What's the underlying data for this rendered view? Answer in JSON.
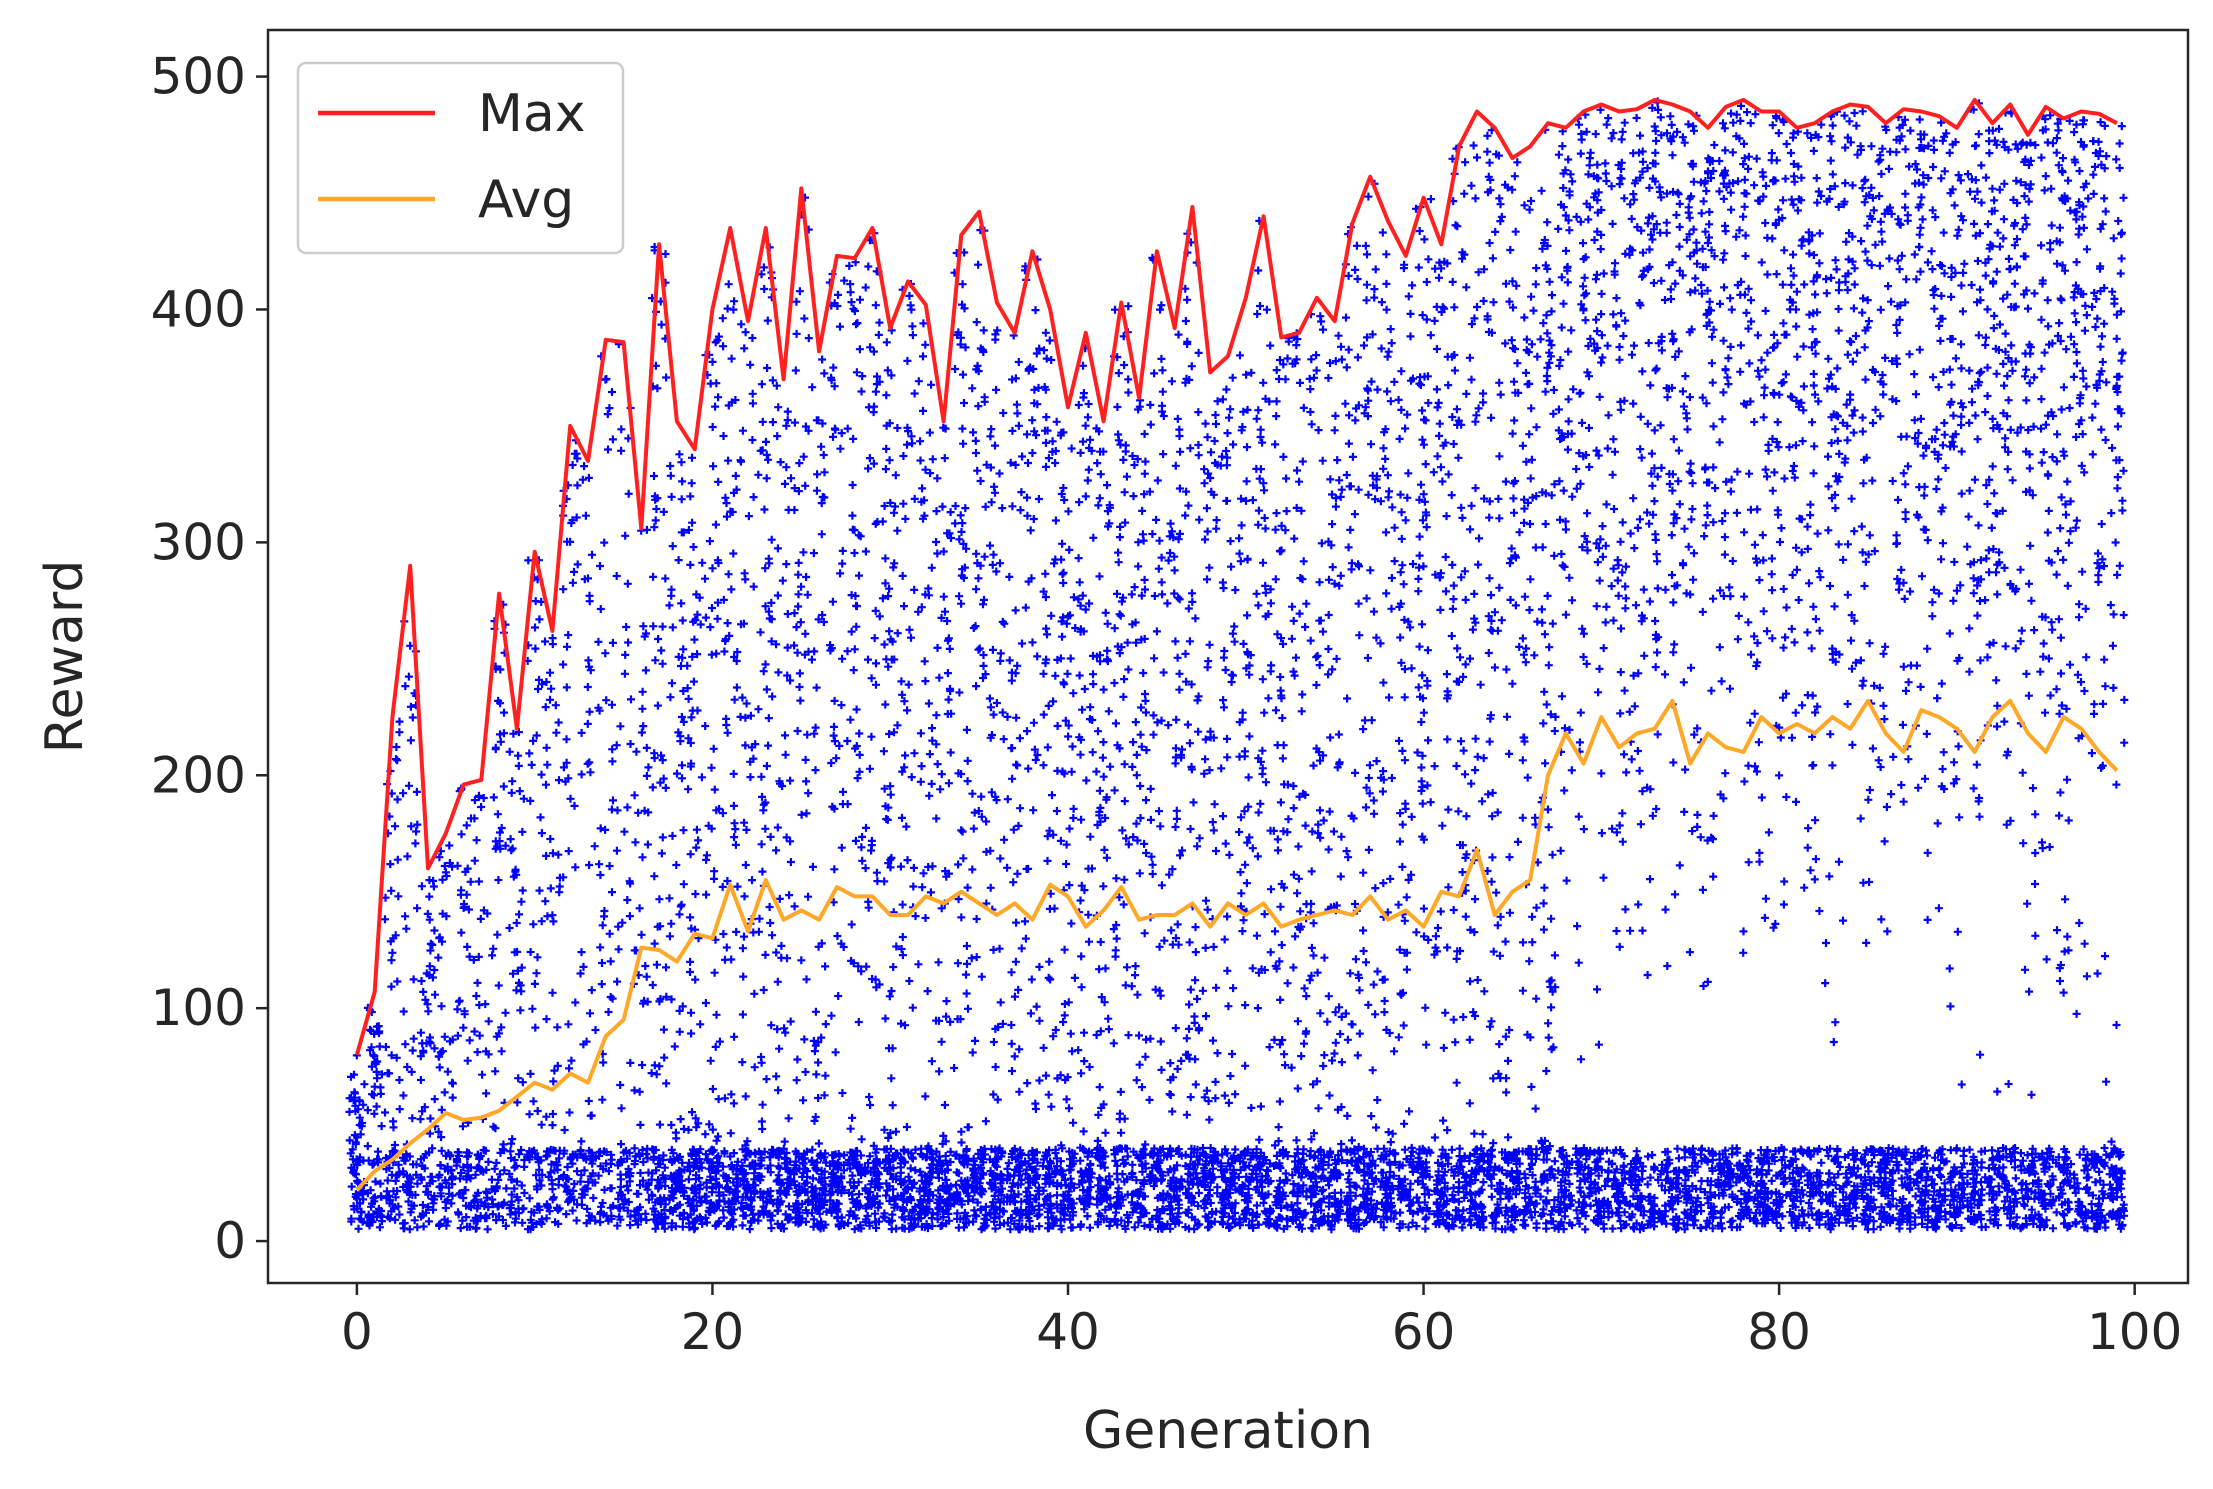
{
  "chart_data": {
    "type": "scatter",
    "title": "",
    "xlabel": "Generation",
    "ylabel": "Reward",
    "xlim": [
      -5,
      103
    ],
    "ylim": [
      -18,
      520
    ],
    "xticks": [
      0,
      20,
      40,
      60,
      80,
      100
    ],
    "yticks": [
      0,
      100,
      200,
      300,
      400,
      500
    ],
    "grid": false,
    "legend": {
      "placement": "top-left",
      "entries": [
        "Max",
        "Avg"
      ]
    },
    "colors": {
      "max": "#ff2020",
      "avg": "#ffa726",
      "scatter": "#0000ff",
      "axes": "#262626"
    },
    "series": [
      {
        "name": "Max",
        "type": "line",
        "x": [
          0,
          1,
          2,
          3,
          4,
          5,
          6,
          7,
          8,
          9,
          10,
          11,
          12,
          13,
          14,
          15,
          16,
          17,
          18,
          19,
          20,
          21,
          22,
          23,
          24,
          25,
          26,
          27,
          28,
          29,
          30,
          31,
          32,
          33,
          34,
          35,
          36,
          37,
          38,
          39,
          40,
          41,
          42,
          43,
          44,
          45,
          46,
          47,
          48,
          49,
          50,
          51,
          52,
          53,
          54,
          55,
          56,
          57,
          58,
          59,
          60,
          61,
          62,
          63,
          64,
          65,
          66,
          67,
          68,
          69,
          70,
          71,
          72,
          73,
          74,
          75,
          76,
          77,
          78,
          79,
          80,
          81,
          82,
          83,
          84,
          85,
          86,
          87,
          88,
          89,
          90,
          91,
          92,
          93,
          94,
          95,
          96,
          97,
          98,
          99
        ],
        "y": [
          80,
          107,
          225,
          290,
          160,
          175,
          196,
          198,
          278,
          220,
          296,
          262,
          350,
          335,
          387,
          386,
          306,
          428,
          352,
          340,
          400,
          435,
          395,
          435,
          370,
          452,
          382,
          423,
          422,
          435,
          392,
          412,
          402,
          352,
          432,
          442,
          403,
          390,
          425,
          400,
          358,
          390,
          352,
          403,
          362,
          425,
          392,
          444,
          373,
          380,
          405,
          440,
          388,
          390,
          405,
          395,
          437,
          457,
          438,
          423,
          448,
          428,
          470,
          485,
          478,
          465,
          470,
          480,
          478,
          485,
          488,
          485,
          486,
          490,
          488,
          485,
          478,
          487,
          490,
          485,
          485,
          478,
          480,
          485,
          488,
          487,
          480,
          486,
          485,
          483,
          478,
          490,
          480,
          488,
          475,
          487,
          482,
          485,
          484,
          480
        ]
      },
      {
        "name": "Avg",
        "type": "line",
        "x": [
          0,
          1,
          2,
          3,
          4,
          5,
          6,
          7,
          8,
          9,
          10,
          11,
          12,
          13,
          14,
          15,
          16,
          17,
          18,
          19,
          20,
          21,
          22,
          23,
          24,
          25,
          26,
          27,
          28,
          29,
          30,
          31,
          32,
          33,
          34,
          35,
          36,
          37,
          38,
          39,
          40,
          41,
          42,
          43,
          44,
          45,
          46,
          47,
          48,
          49,
          50,
          51,
          52,
          53,
          54,
          55,
          56,
          57,
          58,
          59,
          60,
          61,
          62,
          63,
          64,
          65,
          66,
          67,
          68,
          69,
          70,
          71,
          72,
          73,
          74,
          75,
          76,
          77,
          78,
          79,
          80,
          81,
          82,
          83,
          84,
          85,
          86,
          87,
          88,
          89,
          90,
          91,
          92,
          93,
          94,
          95,
          96,
          97,
          98,
          99
        ],
        "y": [
          22,
          30,
          35,
          42,
          48,
          55,
          52,
          53,
          56,
          62,
          68,
          65,
          72,
          68,
          88,
          95,
          126,
          125,
          120,
          132,
          130,
          153,
          133,
          155,
          138,
          142,
          138,
          152,
          148,
          148,
          140,
          140,
          148,
          145,
          150,
          145,
          140,
          145,
          138,
          153,
          148,
          135,
          142,
          152,
          138,
          140,
          140,
          145,
          135,
          145,
          140,
          145,
          135,
          138,
          140,
          142,
          140,
          148,
          138,
          142,
          135,
          150,
          148,
          168,
          140,
          150,
          155,
          200,
          218,
          205,
          225,
          212,
          218,
          220,
          232,
          205,
          218,
          212,
          210,
          225,
          218,
          222,
          218,
          225,
          220,
          232,
          218,
          210,
          228,
          225,
          220,
          210,
          225,
          232,
          218,
          210,
          225,
          220,
          210,
          202
        ]
      },
      {
        "name": "",
        "type": "scatter",
        "description_points": "per-generation population rewards; dense band 5-40 for every generation, upper bound follows Max",
        "bands": [
          {
            "x_from": 0,
            "x_to": 16,
            "y_low": 5,
            "y_high_follows": "Max",
            "dense_low": 40
          },
          {
            "x_from": 17,
            "x_to": 67,
            "y_low": 5,
            "y_high_follows": "Max",
            "dense_low": 40
          },
          {
            "x_from": 68,
            "x_to": 99,
            "y_low": 5,
            "y_high_follows": "Max",
            "dense_low": 40
          }
        ]
      }
    ]
  }
}
